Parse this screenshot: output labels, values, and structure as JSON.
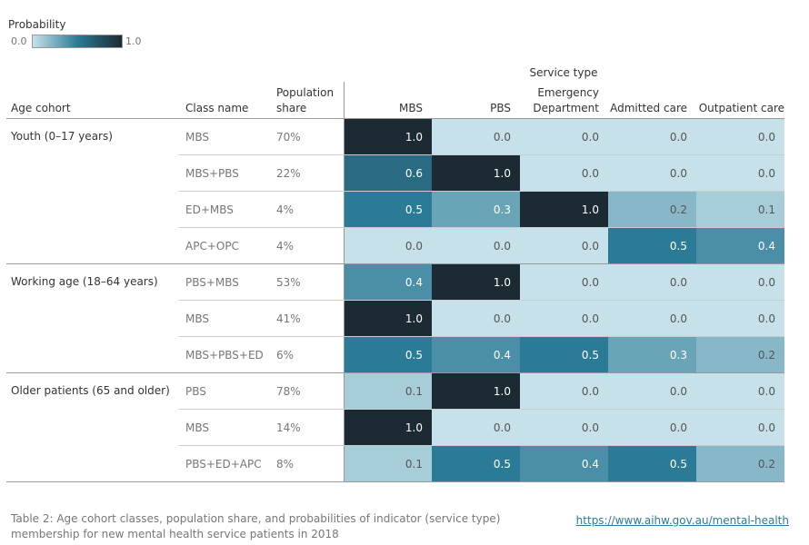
{
  "legend": {
    "title": "Probability",
    "min": "0.0",
    "max": "1.0",
    "colors": [
      "#c6e1e9",
      "#2b7b96",
      "#1c2a33"
    ]
  },
  "table": {
    "group_header": "Service type",
    "columns": [
      "Age cohort",
      "Class name",
      "Population share",
      "MBS",
      "PBS",
      "Emergency Department",
      "Admitted care",
      "Outpatient care"
    ],
    "groups": [
      {
        "cohort": "Youth (0–17 years)",
        "rows": [
          [
            "MBS",
            "70%",
            "1.0",
            "0.0",
            "0.0",
            "0.0",
            "0.0"
          ],
          [
            "MBS+PBS",
            "22%",
            "0.6",
            "1.0",
            "0.0",
            "0.0",
            "0.0"
          ],
          [
            "ED+MBS",
            "4%",
            "0.5",
            "0.3",
            "1.0",
            "0.2",
            "0.1"
          ],
          [
            "APC+OPC",
            "4%",
            "0.0",
            "0.0",
            "0.0",
            "0.5",
            "0.4"
          ]
        ]
      },
      {
        "cohort": "Working age (18–64 years)",
        "rows": [
          [
            "PBS+MBS",
            "53%",
            "0.4",
            "1.0",
            "0.0",
            "0.0",
            "0.0"
          ],
          [
            "MBS",
            "41%",
            "1.0",
            "0.0",
            "0.0",
            "0.0",
            "0.0"
          ],
          [
            "MBS+PBS+ED",
            "6%",
            "0.5",
            "0.4",
            "0.5",
            "0.3",
            "0.2"
          ]
        ]
      },
      {
        "cohort": "Older patients (65 and older)",
        "rows": [
          [
            "PBS",
            "78%",
            "0.1",
            "1.0",
            "0.0",
            "0.0",
            "0.0"
          ],
          [
            "MBS",
            "14%",
            "1.0",
            "0.0",
            "0.0",
            "0.0",
            "0.0"
          ],
          [
            "PBS+ED+APC",
            "8%",
            "0.1",
            "0.5",
            "0.4",
            "0.5",
            "0.2"
          ]
        ]
      }
    ]
  },
  "caption": "Table 2: Age cohort classes, population share, and probabilities of indicator (service type) membership for new mental health service patients in 2018",
  "link": "https://www.aihw.gov.au/mental-health"
}
